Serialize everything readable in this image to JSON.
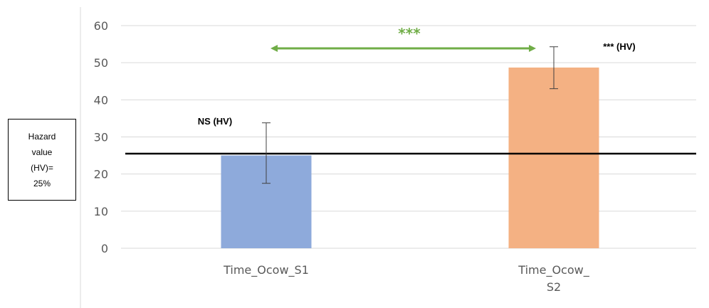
{
  "chart_data": {
    "type": "bar",
    "categories": [
      "Time_Ocow_S1",
      "Time_Ocow_\nS2"
    ],
    "values": [
      25,
      48.7
    ],
    "error_bars": [
      {
        "low": 17.5,
        "high": 33.8
      },
      {
        "low": 43.0,
        "high": 54.3
      }
    ],
    "bar_colors": [
      "#8eaadb",
      "#f4b183"
    ],
    "ylim": [
      0,
      60
    ],
    "yticks": [
      0,
      10,
      20,
      30,
      40,
      50,
      60
    ],
    "grid": true,
    "reference_line": {
      "value": 25.5,
      "color": "#000000"
    },
    "annotations": {
      "bar1": "NS (HV)",
      "bar2": "*** (HV)",
      "comparison": "***",
      "comparison_color": "#70ad47"
    }
  },
  "hazard_box": {
    "line1": "Hazard",
    "line2": "value",
    "line3": "(HV)=",
    "line4": "25%"
  }
}
